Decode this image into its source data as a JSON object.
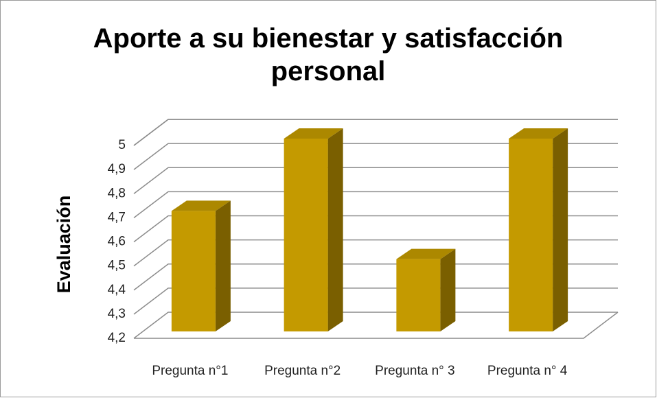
{
  "chart_data": {
    "type": "bar3d",
    "title": "Aporte a su bienestar y satisfacción personal",
    "ylabel": "Evaluación",
    "categories": [
      "Pregunta n°1",
      "Pregunta n°2",
      "Pregunta n° 3",
      "Pregunta n° 4"
    ],
    "values": [
      4.7,
      5,
      4.5,
      5
    ],
    "color": "#c49a00",
    "ylim": [
      4.2,
      5
    ],
    "yticks": [
      {
        "value": 4.2,
        "label": "4,2"
      },
      {
        "value": 4.3,
        "label": "4,3"
      },
      {
        "value": 4.4,
        "label": "4,4"
      },
      {
        "value": 4.5,
        "label": "4,5"
      },
      {
        "value": 4.6,
        "label": "4,6"
      },
      {
        "value": 4.7,
        "label": "4,7"
      },
      {
        "value": 4.8,
        "label": "4,8"
      },
      {
        "value": 4.9,
        "label": "4,9"
      },
      {
        "value": 5,
        "label": "5"
      }
    ],
    "grid": true
  }
}
